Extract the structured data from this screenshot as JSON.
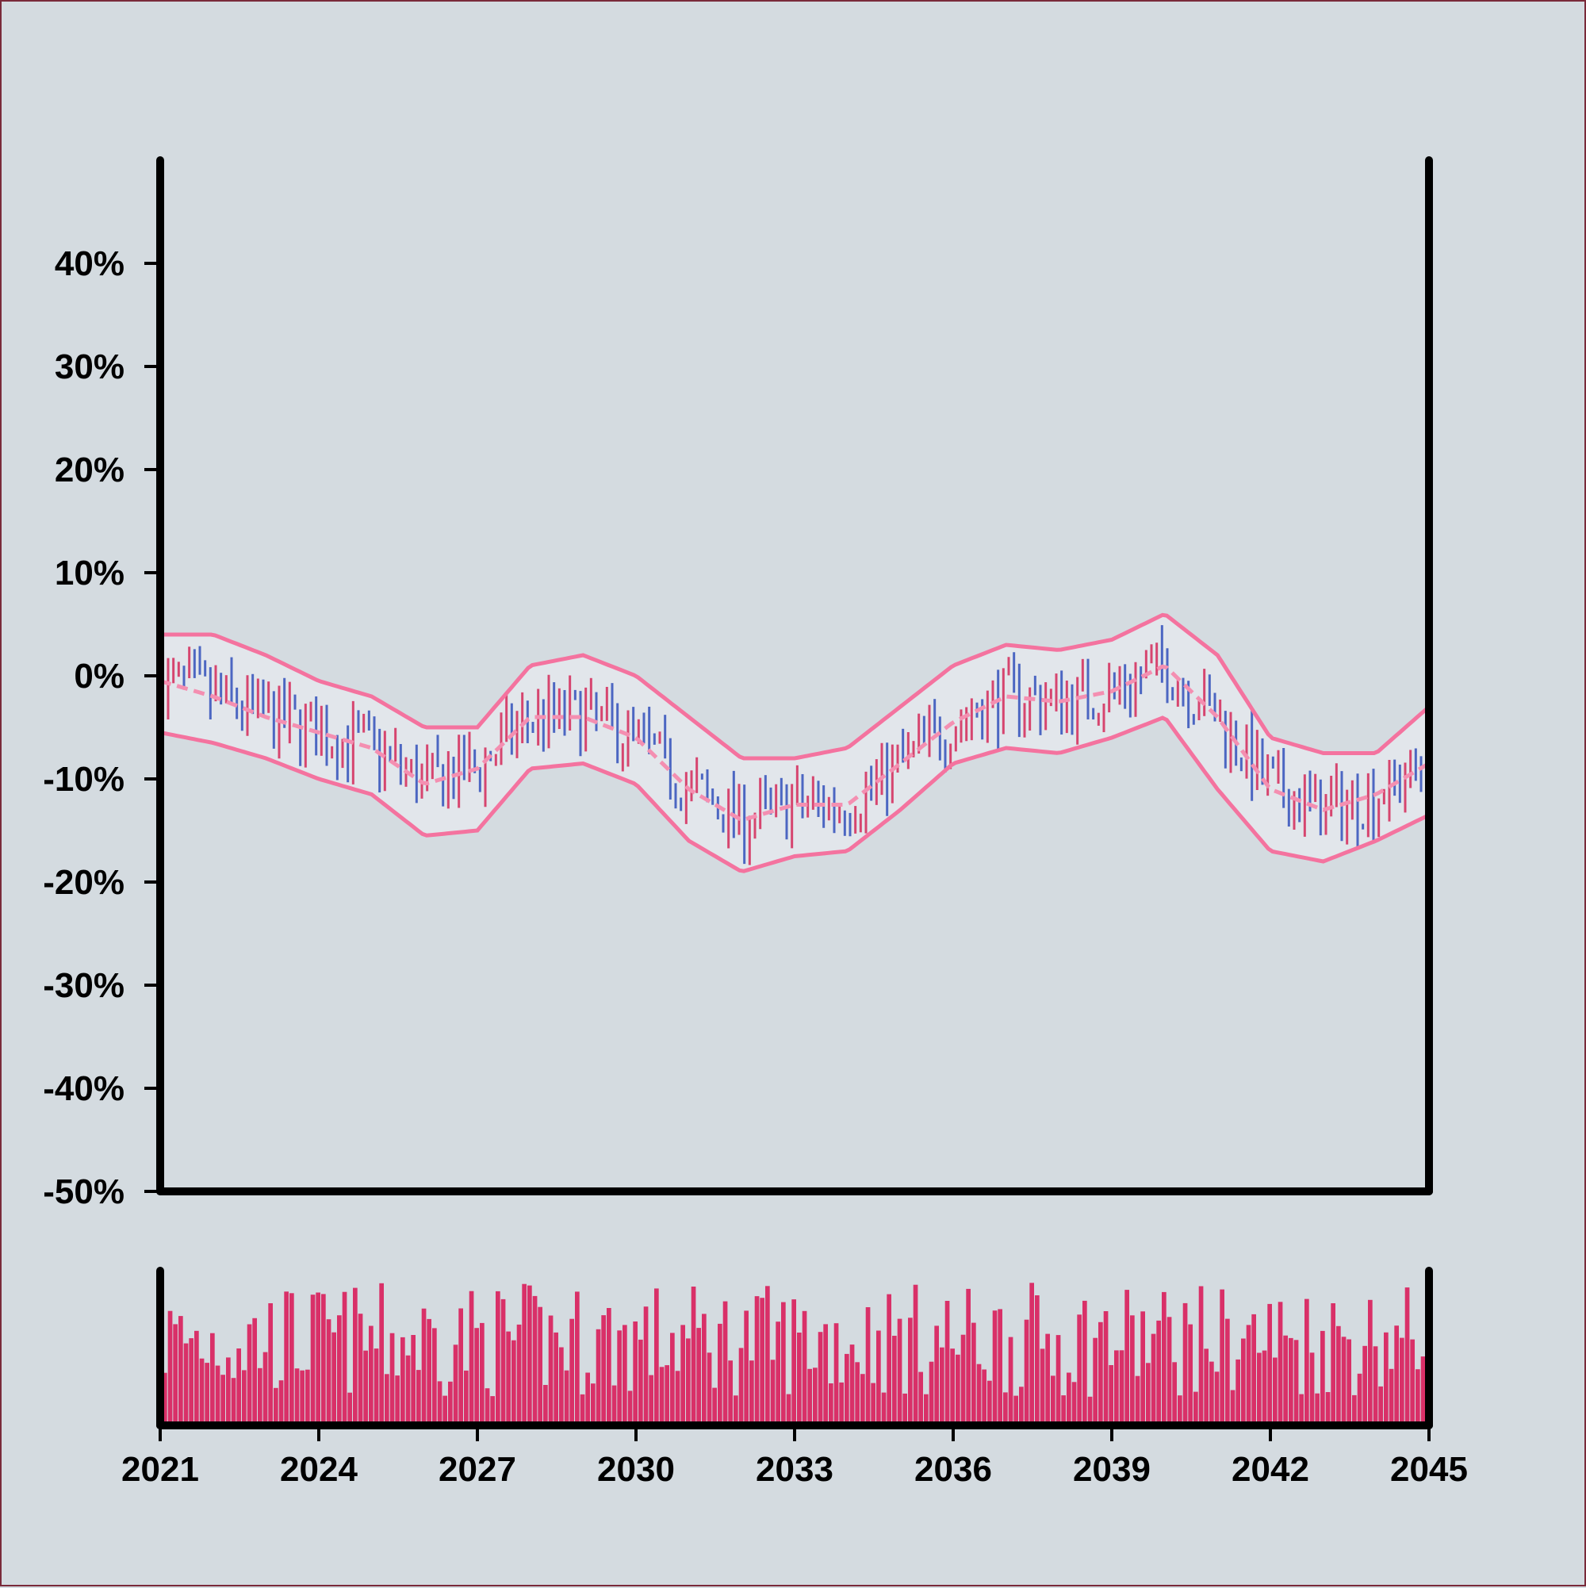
{
  "chart_data": {
    "type": "ohlc",
    "title": "",
    "xlabel": "",
    "ylabel": "",
    "background": "#d4dbe0",
    "colors": {
      "up": "#d6456f",
      "down": "#4c66c2",
      "band": "#f4739f",
      "volume": "#d93068"
    },
    "y_ticks": [
      "40%",
      "30%",
      "20%",
      "10%",
      "0%",
      "-10%",
      "-20%",
      "-30%",
      "-40%",
      "-50%"
    ],
    "x_ticks": [
      "2021",
      "2024",
      "2027",
      "2030",
      "2033",
      "2036",
      "2039",
      "2042",
      "2045"
    ],
    "ylim": [
      -0.5,
      0.5
    ],
    "xlim": [
      2021,
      2045
    ],
    "bands": {
      "x": [
        2021.0,
        2022.0,
        2023.0,
        2024.0,
        2025.0,
        2026.0,
        2027.0,
        2028.0,
        2029.0,
        2030.0,
        2031.0,
        2032.0,
        2033.0,
        2034.0,
        2035.0,
        2036.0,
        2037.0,
        2038.0,
        2039.0,
        2040.0,
        2041.0,
        2042.0,
        2043.0,
        2044.0,
        2045.0
      ],
      "upper": [
        0.04,
        0.04,
        0.02,
        -0.005,
        -0.02,
        -0.05,
        -0.05,
        0.01,
        0.02,
        0.0,
        -0.04,
        -0.08,
        -0.08,
        -0.07,
        -0.03,
        0.01,
        0.03,
        0.025,
        0.035,
        0.06,
        0.02,
        -0.06,
        -0.075,
        -0.075,
        -0.03
      ],
      "middle": [
        -0.005,
        -0.02,
        -0.04,
        -0.055,
        -0.07,
        -0.105,
        -0.09,
        -0.04,
        -0.04,
        -0.06,
        -0.11,
        -0.14,
        -0.125,
        -0.125,
        -0.085,
        -0.045,
        -0.02,
        -0.025,
        -0.015,
        0.01,
        -0.04,
        -0.11,
        -0.13,
        -0.115,
        -0.085
      ],
      "lower": [
        -0.055,
        -0.065,
        -0.08,
        -0.1,
        -0.115,
        -0.155,
        -0.15,
        -0.09,
        -0.085,
        -0.105,
        -0.16,
        -0.19,
        -0.175,
        -0.17,
        -0.13,
        -0.085,
        -0.07,
        -0.075,
        -0.06,
        -0.04,
        -0.11,
        -0.17,
        -0.18,
        -0.16,
        -0.135
      ]
    },
    "volume_legend": "relative volume (unlabeled axis)"
  }
}
